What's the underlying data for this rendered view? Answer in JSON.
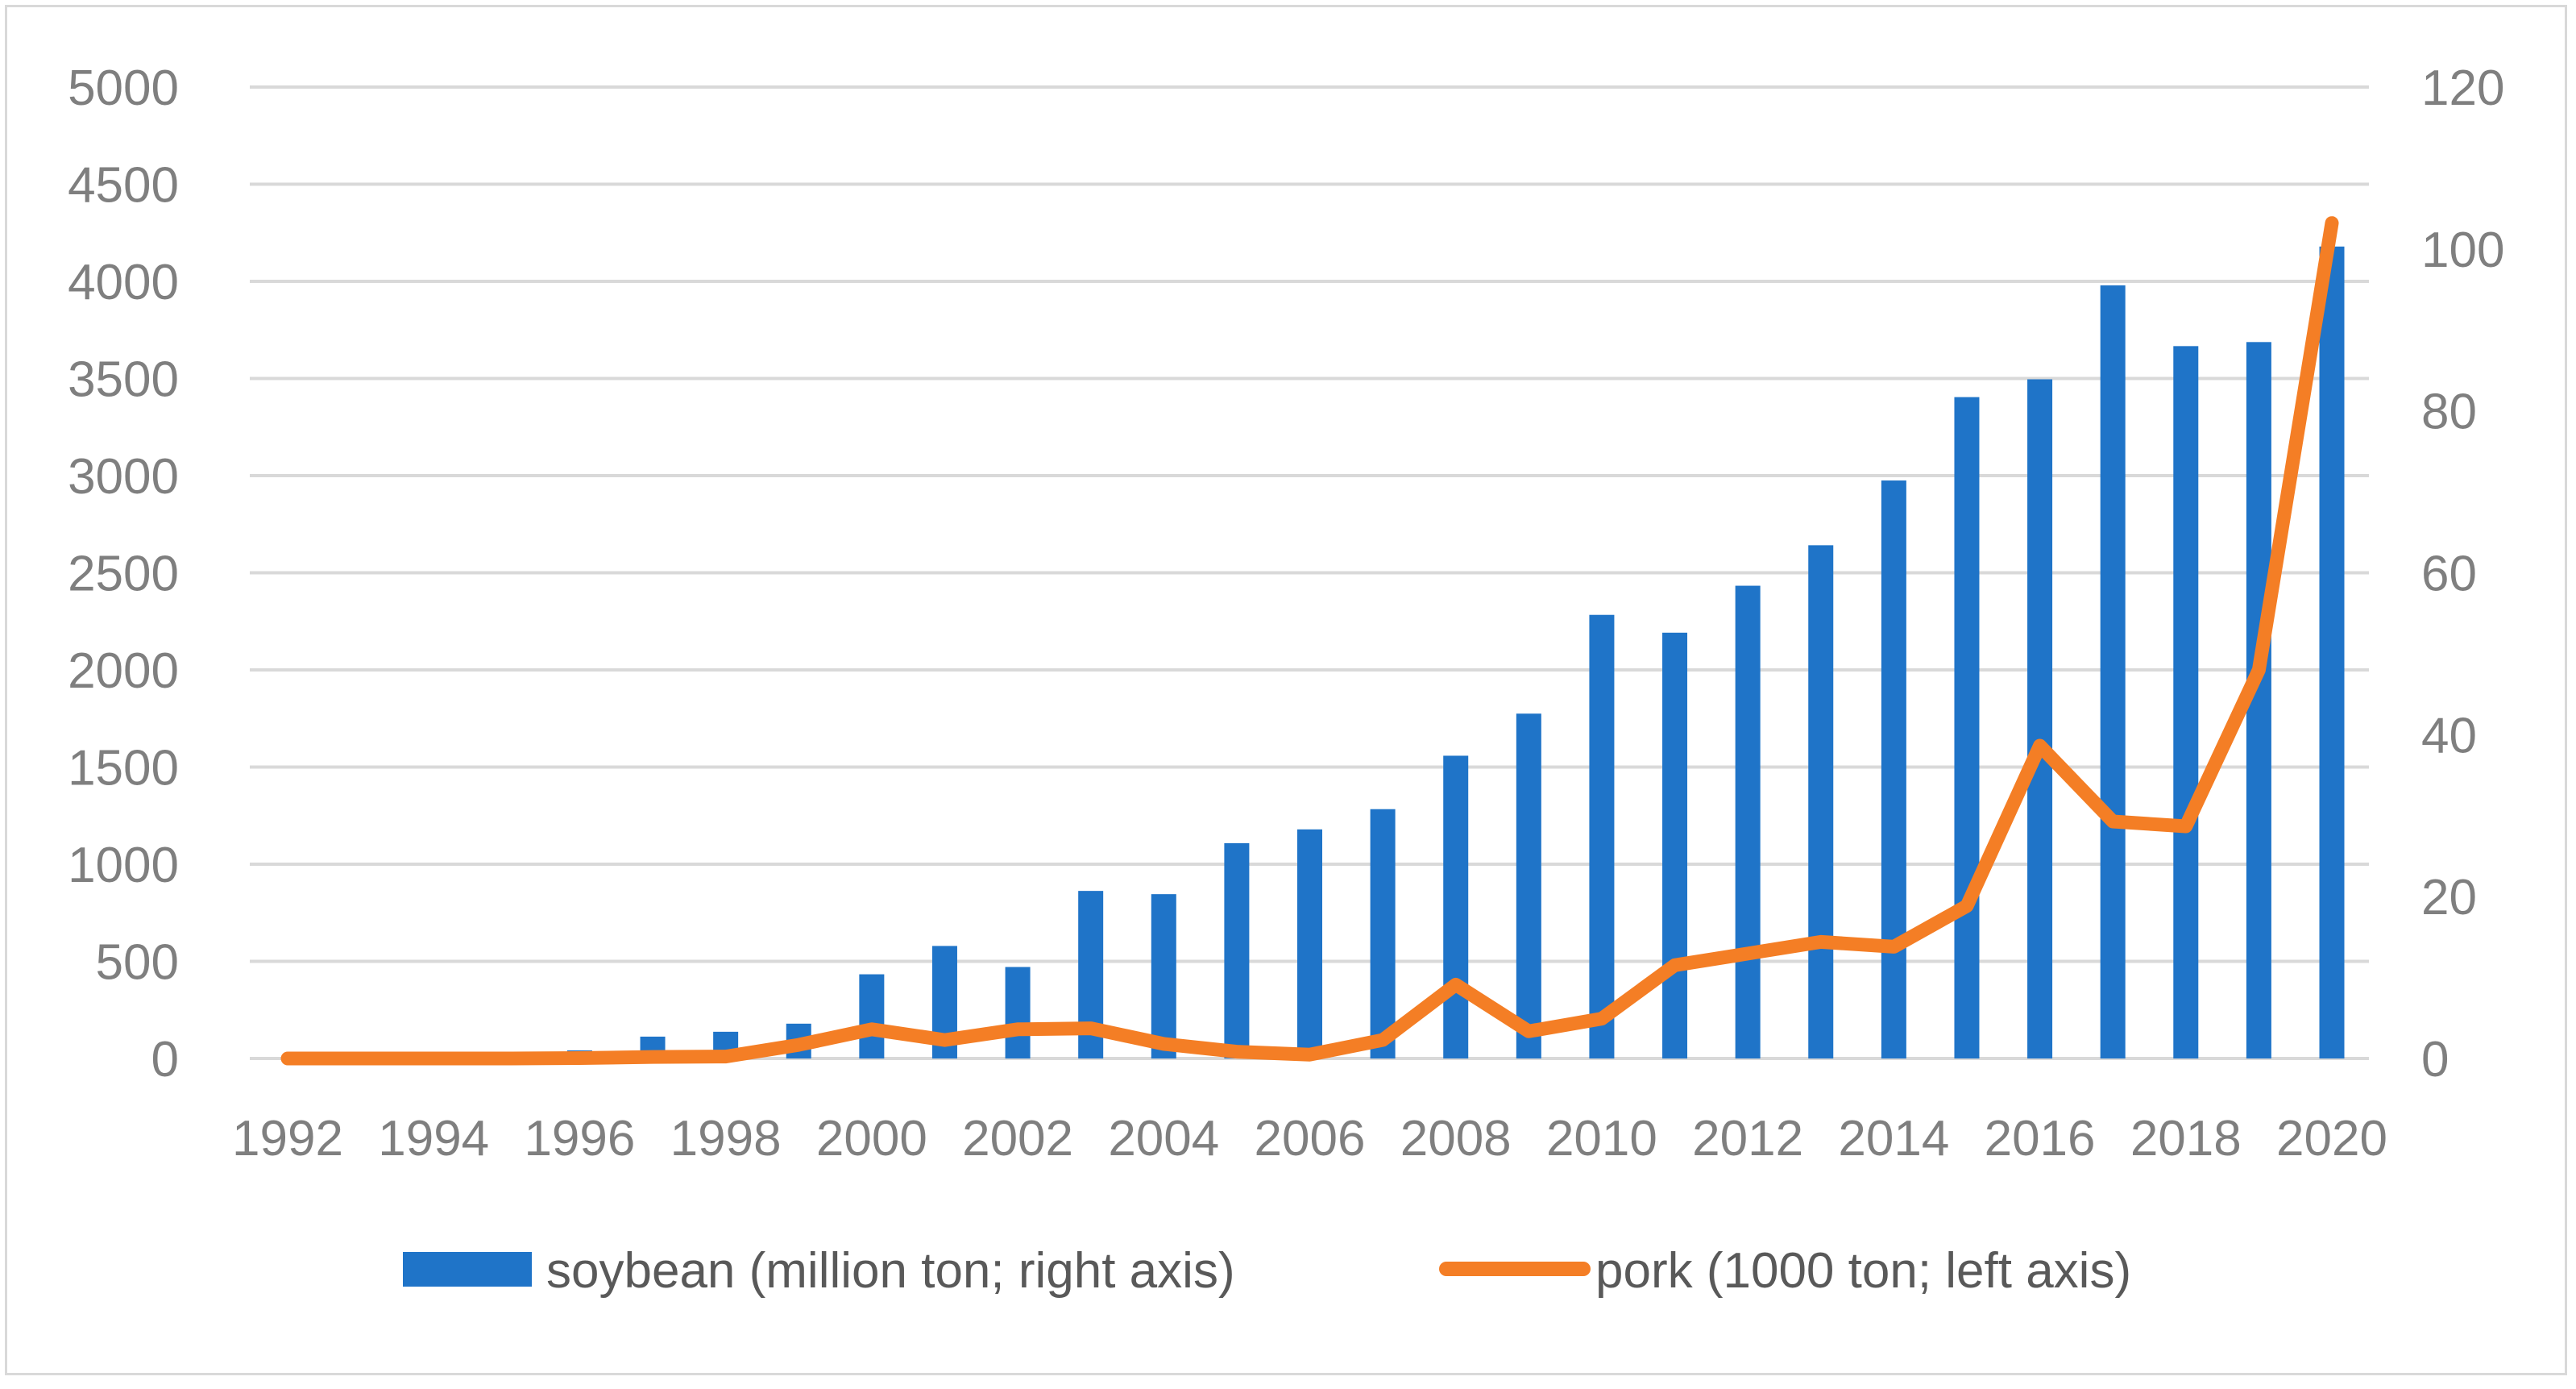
{
  "chart_data": {
    "type": "bar+line",
    "title": "",
    "x": [
      1992,
      1993,
      1994,
      1995,
      1996,
      1997,
      1998,
      1999,
      2000,
      2001,
      2002,
      2003,
      2004,
      2005,
      2006,
      2007,
      2008,
      2009,
      2010,
      2011,
      2012,
      2013,
      2014,
      2015,
      2016,
      2017,
      2018,
      2019,
      2020
    ],
    "x_tick_labels": [
      "1992",
      "1994",
      "1996",
      "1998",
      "2000",
      "2002",
      "2004",
      "2006",
      "2008",
      "2010",
      "2012",
      "2014",
      "2016",
      "2018",
      "2020"
    ],
    "left_axis": {
      "ylim": [
        0,
        5000
      ],
      "ticks": [
        "0",
        "500",
        "1000",
        "1500",
        "2000",
        "2500",
        "3000",
        "3500",
        "4000",
        "4500",
        "5000"
      ]
    },
    "right_axis": {
      "ylim": [
        0,
        120
      ],
      "ticks": [
        "0",
        "20",
        "40",
        "60",
        "80",
        "100",
        "120"
      ]
    },
    "grid": true,
    "legend_position": "bottom",
    "series": [
      {
        "name": "soybean (million ton; right axis)",
        "type": "bar",
        "axis": "right",
        "color": "#1f74c8",
        "values": [
          0,
          0,
          0,
          0,
          1.0,
          2.7,
          3.3,
          4.3,
          10.4,
          13.9,
          11.3,
          20.7,
          20.3,
          26.6,
          28.3,
          30.8,
          37.4,
          42.6,
          54.8,
          52.6,
          58.4,
          63.4,
          71.4,
          81.7,
          83.9,
          95.5,
          88.0,
          88.5,
          100.3
        ]
      },
      {
        "name": "pork (1000 ton; left axis)",
        "type": "line",
        "axis": "left",
        "color": "#f47e25",
        "values": [
          0,
          0,
          0,
          0,
          2,
          8,
          10,
          70,
          150,
          95,
          150,
          155,
          75,
          35,
          20,
          95,
          380,
          140,
          205,
          480,
          540,
          600,
          575,
          785,
          1610,
          1220,
          1195,
          2000,
          4300
        ]
      }
    ]
  }
}
